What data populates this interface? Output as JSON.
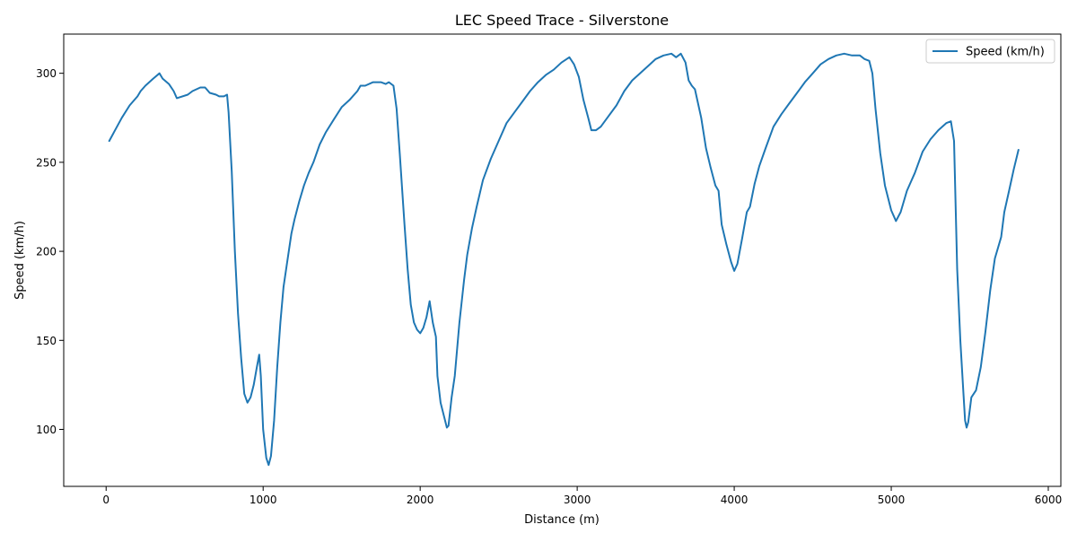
{
  "chart_data": {
    "type": "line",
    "title": "LEC Speed Trace - Silverstone",
    "xlabel": "Distance (m)",
    "ylabel": "Speed (km/h)",
    "xlim": [
      -270,
      6080
    ],
    "ylim": [
      68,
      322
    ],
    "x_ticks": [
      0,
      1000,
      2000,
      3000,
      4000,
      5000,
      6000
    ],
    "y_ticks": [
      100,
      150,
      200,
      250,
      300
    ],
    "x_tick_labels": [
      "0",
      "1000",
      "2000",
      "3000",
      "4000",
      "5000",
      "6000"
    ],
    "y_tick_labels": [
      "100",
      "150",
      "200",
      "250",
      "300"
    ],
    "grid": false,
    "legend_position": "top-right",
    "colors": {
      "series": "#1f77b4",
      "axes": "#000000",
      "background": "#ffffff"
    },
    "series": [
      {
        "name": "Speed (km/h)",
        "points": [
          [
            20,
            262
          ],
          [
            100,
            275
          ],
          [
            150,
            282
          ],
          [
            200,
            287
          ],
          [
            220,
            290
          ],
          [
            250,
            293
          ],
          [
            300,
            297
          ],
          [
            340,
            300
          ],
          [
            360,
            297
          ],
          [
            400,
            294
          ],
          [
            430,
            290
          ],
          [
            450,
            286
          ],
          [
            520,
            288
          ],
          [
            550,
            290
          ],
          [
            600,
            292
          ],
          [
            630,
            292
          ],
          [
            660,
            289
          ],
          [
            700,
            288
          ],
          [
            720,
            287
          ],
          [
            750,
            287
          ],
          [
            770,
            288
          ],
          [
            780,
            278
          ],
          [
            800,
            245
          ],
          [
            820,
            200
          ],
          [
            840,
            165
          ],
          [
            860,
            140
          ],
          [
            880,
            120
          ],
          [
            900,
            115
          ],
          [
            920,
            118
          ],
          [
            940,
            125
          ],
          [
            960,
            135
          ],
          [
            975,
            142
          ],
          [
            985,
            130
          ],
          [
            1000,
            100
          ],
          [
            1020,
            84
          ],
          [
            1035,
            80
          ],
          [
            1050,
            85
          ],
          [
            1070,
            105
          ],
          [
            1090,
            135
          ],
          [
            1110,
            160
          ],
          [
            1130,
            180
          ],
          [
            1150,
            192
          ],
          [
            1180,
            210
          ],
          [
            1200,
            218
          ],
          [
            1230,
            228
          ],
          [
            1260,
            237
          ],
          [
            1290,
            244
          ],
          [
            1320,
            250
          ],
          [
            1360,
            260
          ],
          [
            1400,
            267
          ],
          [
            1450,
            274
          ],
          [
            1500,
            281
          ],
          [
            1550,
            285
          ],
          [
            1600,
            290
          ],
          [
            1620,
            293
          ],
          [
            1650,
            293
          ],
          [
            1700,
            295
          ],
          [
            1750,
            295
          ],
          [
            1780,
            294
          ],
          [
            1800,
            295
          ],
          [
            1830,
            293
          ],
          [
            1850,
            280
          ],
          [
            1870,
            255
          ],
          [
            1900,
            215
          ],
          [
            1920,
            190
          ],
          [
            1940,
            170
          ],
          [
            1960,
            160
          ],
          [
            1980,
            156
          ],
          [
            2000,
            154
          ],
          [
            2020,
            157
          ],
          [
            2040,
            163
          ],
          [
            2060,
            172
          ],
          [
            2080,
            160
          ],
          [
            2100,
            152
          ],
          [
            2110,
            130
          ],
          [
            2130,
            115
          ],
          [
            2150,
            108
          ],
          [
            2170,
            101
          ],
          [
            2180,
            102
          ],
          [
            2200,
            118
          ],
          [
            2220,
            130
          ],
          [
            2250,
            160
          ],
          [
            2280,
            184
          ],
          [
            2300,
            198
          ],
          [
            2330,
            213
          ],
          [
            2360,
            225
          ],
          [
            2400,
            240
          ],
          [
            2450,
            252
          ],
          [
            2500,
            262
          ],
          [
            2550,
            272
          ],
          [
            2600,
            278
          ],
          [
            2650,
            284
          ],
          [
            2700,
            290
          ],
          [
            2750,
            295
          ],
          [
            2800,
            299
          ],
          [
            2850,
            302
          ],
          [
            2900,
            306
          ],
          [
            2950,
            309
          ],
          [
            2980,
            305
          ],
          [
            3010,
            298
          ],
          [
            3040,
            285
          ],
          [
            3070,
            275
          ],
          [
            3090,
            268
          ],
          [
            3120,
            268
          ],
          [
            3150,
            270
          ],
          [
            3200,
            276
          ],
          [
            3250,
            282
          ],
          [
            3300,
            290
          ],
          [
            3350,
            296
          ],
          [
            3400,
            300
          ],
          [
            3450,
            304
          ],
          [
            3500,
            308
          ],
          [
            3550,
            310
          ],
          [
            3600,
            311
          ],
          [
            3630,
            309
          ],
          [
            3660,
            311
          ],
          [
            3690,
            306
          ],
          [
            3710,
            296
          ],
          [
            3730,
            293
          ],
          [
            3750,
            291
          ],
          [
            3790,
            275
          ],
          [
            3820,
            258
          ],
          [
            3850,
            247
          ],
          [
            3880,
            237
          ],
          [
            3900,
            234
          ],
          [
            3920,
            215
          ],
          [
            3950,
            204
          ],
          [
            3980,
            194
          ],
          [
            4000,
            189
          ],
          [
            4020,
            193
          ],
          [
            4050,
            207
          ],
          [
            4080,
            222
          ],
          [
            4100,
            225
          ],
          [
            4130,
            238
          ],
          [
            4160,
            248
          ],
          [
            4200,
            258
          ],
          [
            4250,
            270
          ],
          [
            4300,
            277
          ],
          [
            4350,
            283
          ],
          [
            4400,
            289
          ],
          [
            4450,
            295
          ],
          [
            4500,
            300
          ],
          [
            4550,
            305
          ],
          [
            4600,
            308
          ],
          [
            4650,
            310
          ],
          [
            4700,
            311
          ],
          [
            4750,
            310
          ],
          [
            4800,
            310
          ],
          [
            4830,
            308
          ],
          [
            4860,
            307
          ],
          [
            4880,
            300
          ],
          [
            4900,
            280
          ],
          [
            4930,
            255
          ],
          [
            4960,
            237
          ],
          [
            5000,
            223
          ],
          [
            5030,
            217
          ],
          [
            5060,
            222
          ],
          [
            5100,
            234
          ],
          [
            5150,
            244
          ],
          [
            5200,
            256
          ],
          [
            5250,
            263
          ],
          [
            5300,
            268
          ],
          [
            5350,
            272
          ],
          [
            5380,
            273
          ],
          [
            5400,
            262
          ],
          [
            5420,
            190
          ],
          [
            5440,
            150
          ],
          [
            5460,
            120
          ],
          [
            5470,
            105
          ],
          [
            5480,
            101
          ],
          [
            5490,
            104
          ],
          [
            5510,
            118
          ],
          [
            5540,
            122
          ],
          [
            5570,
            135
          ],
          [
            5600,
            155
          ],
          [
            5630,
            178
          ],
          [
            5660,
            196
          ],
          [
            5700,
            208
          ],
          [
            5720,
            222
          ],
          [
            5750,
            234
          ],
          [
            5780,
            246
          ],
          [
            5810,
            257
          ]
        ]
      }
    ]
  }
}
